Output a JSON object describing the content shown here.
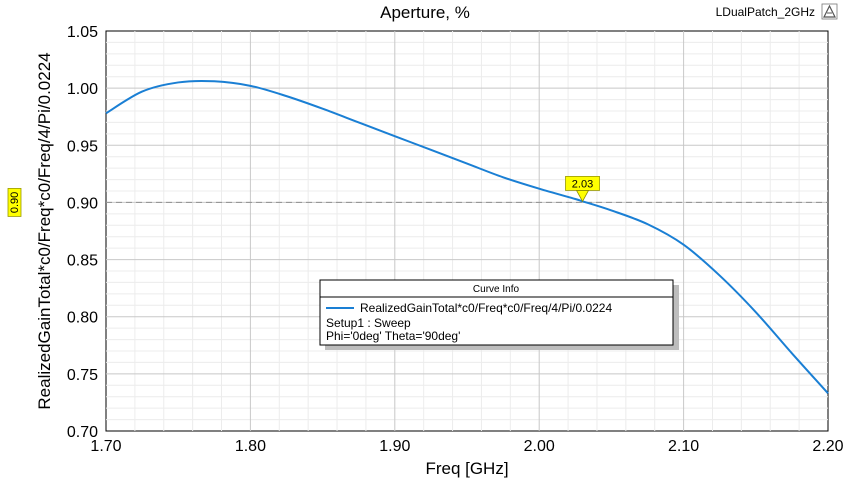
{
  "header": {
    "title": "Aperture, %",
    "project": "LDualPatch_2GHz",
    "brand_icon": "ansys-logo-icon"
  },
  "chart_data": {
    "type": "line",
    "title": "Aperture, %",
    "xlabel": "Freq [GHz]",
    "ylabel": "RealizedGainTotal*c0/Freq*c0/Freq/4/Pi/0.0224",
    "xlim": [
      1.7,
      2.2
    ],
    "ylim": [
      0.7,
      1.05
    ],
    "xticks": [
      "1.70",
      "1.80",
      "1.90",
      "2.00",
      "2.10",
      "2.20"
    ],
    "yticks": [
      "0.70",
      "0.75",
      "0.80",
      "0.85",
      "0.90",
      "0.95",
      "1.00",
      "1.05"
    ],
    "grid": true,
    "series": [
      {
        "name": "RealizedGainTotal*c0/Freq*c0/Freq/4/Pi/0.0224",
        "color": "#1a7fd4",
        "x": [
          1.7,
          1.725,
          1.75,
          1.775,
          1.8,
          1.825,
          1.85,
          1.875,
          1.9,
          1.925,
          1.95,
          1.975,
          2.0,
          2.025,
          2.03,
          2.05,
          2.075,
          2.1,
          2.125,
          2.15,
          2.175,
          2.2
        ],
        "y": [
          0.978,
          0.997,
          1.005,
          1.006,
          1.002,
          0.993,
          0.982,
          0.97,
          0.958,
          0.946,
          0.934,
          0.922,
          0.912,
          0.903,
          0.901,
          0.893,
          0.881,
          0.863,
          0.836,
          0.804,
          0.768,
          0.733
        ]
      }
    ],
    "marker": {
      "label": "2.03",
      "x": 2.03,
      "y": 0.9,
      "hline_label": "0.90"
    },
    "legend": {
      "header": "Curve Info",
      "entries": [
        {
          "name": "RealizedGainTotal*c0/Freq*c0/Freq/4/Pi/0.0224",
          "lines": [
            "Setup1 : Sweep",
            "Phi='0deg' Theta='90deg'"
          ]
        }
      ],
      "placement": "lower-center"
    }
  }
}
